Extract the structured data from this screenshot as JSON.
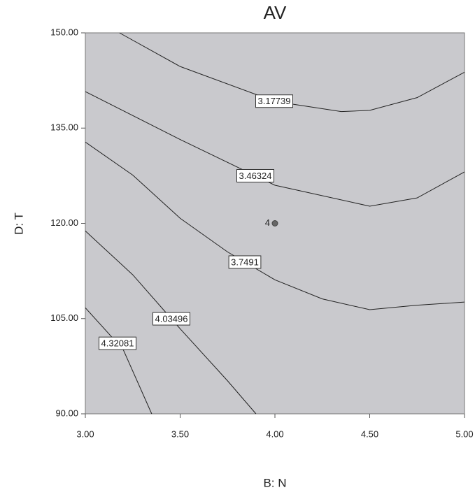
{
  "chart_data": {
    "type": "contour",
    "title": "AV",
    "x_label": "B: N",
    "y_label": "D: T",
    "xlim": [
      3,
      5
    ],
    "ylim": [
      90,
      150
    ],
    "xticks": [
      {
        "value": 3,
        "label": "3.00"
      },
      {
        "value": 3.5,
        "label": "3.50"
      },
      {
        "value": 4,
        "label": "4.00"
      },
      {
        "value": 4.5,
        "label": "4.50"
      },
      {
        "value": 5,
        "label": "5.00"
      }
    ],
    "yticks": [
      {
        "value": 90,
        "label": "90.00"
      },
      {
        "value": 105,
        "label": "105.00"
      },
      {
        "value": 120,
        "label": "120.00"
      },
      {
        "value": 135,
        "label": "135.00"
      },
      {
        "value": 150,
        "label": "150.00"
      }
    ],
    "contours": [
      {
        "level": 3.17739,
        "x": [
          3.18,
          3.5,
          4.0,
          4.35,
          4.5,
          4.75,
          5.0
        ],
        "y": [
          150,
          144.7,
          139.2,
          137.6,
          137.8,
          139.8,
          143.8
        ]
      },
      {
        "level": 3.46324,
        "x": [
          3.0,
          3.5,
          4.0,
          4.5,
          4.75,
          5.0
        ],
        "y": [
          140.75,
          133.2,
          126.0,
          122.7,
          124.0,
          128.1
        ]
      },
      {
        "level": 3.7491,
        "x": [
          3.0,
          3.25,
          3.5,
          3.75,
          4.0,
          4.25,
          4.5,
          4.75,
          5.0
        ],
        "y": [
          132.8,
          127.6,
          120.8,
          115.5,
          111.1,
          108.1,
          106.4,
          107.1,
          107.6
        ]
      },
      {
        "level": 4.03496,
        "x": [
          3.0,
          3.25,
          3.5,
          3.75,
          3.9
        ],
        "y": [
          118.8,
          111.9,
          103.4,
          95.2,
          90
        ]
      },
      {
        "level": 4.32081,
        "x": [
          3.0,
          3.2,
          3.35
        ],
        "y": [
          106.7,
          100.1,
          90
        ]
      }
    ],
    "points": [
      {
        "label": "4",
        "x": 4,
        "y": 120
      }
    ]
  }
}
